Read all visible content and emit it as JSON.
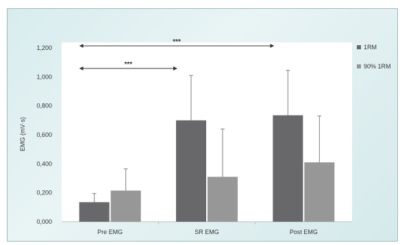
{
  "chart_data": {
    "type": "bar",
    "title": "",
    "xlabel": "",
    "ylabel": "EMG (mV·s)",
    "ylim": [
      0,
      1.2
    ],
    "yticks": [
      "0,000",
      "0,200",
      "0,400",
      "0,600",
      "0,800",
      "1,000",
      "1,200"
    ],
    "categories": [
      "Pre EMG",
      "SR EMG",
      "Post EMG"
    ],
    "series": [
      {
        "name": "1RM",
        "color": "#68686a",
        "values": [
          0.135,
          0.7,
          0.735
        ],
        "errors": [
          0.06,
          0.31,
          0.31
        ]
      },
      {
        "name": "90% 1RM",
        "color": "#979798",
        "values": [
          0.215,
          0.31,
          0.41
        ],
        "errors": [
          0.15,
          0.33,
          0.32
        ]
      }
    ],
    "annotations": [
      {
        "label": "***",
        "from": "Pre EMG",
        "to": "SR EMG"
      },
      {
        "label": "***",
        "from": "Pre EMG",
        "to": "Post EMG"
      }
    ],
    "legend": "top-right",
    "grid": false
  }
}
